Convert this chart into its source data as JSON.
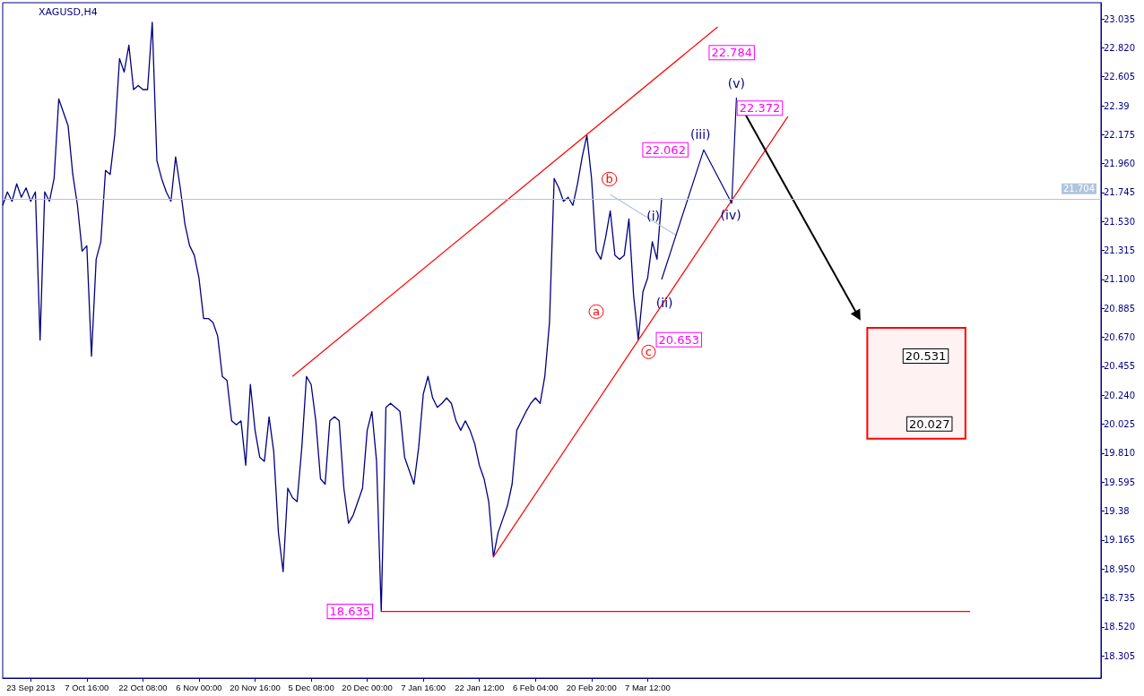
{
  "chart_data": {
    "type": "line",
    "title": "XAGUSD,H4",
    "categories": [
      null,
      null,
      null,
      null,
      null,
      null,
      "23 Sep 2013",
      null,
      null,
      null,
      null,
      null,
      null,
      null,
      null,
      null,
      null,
      null,
      "7 Oct 16:00",
      null,
      null,
      null,
      null,
      null,
      null,
      null,
      null,
      null,
      null,
      null,
      "22 Oct 08:00",
      null,
      null,
      null,
      null,
      null,
      null,
      null,
      null,
      null,
      null,
      null,
      "6 Nov 00:00",
      null,
      null,
      null,
      null,
      null,
      null,
      null,
      null,
      null,
      null,
      null,
      "20 Nov 16:00",
      null,
      null,
      null,
      null,
      null,
      null,
      null,
      null,
      null,
      null,
      null,
      "5 Dec 08:00",
      null,
      null,
      null,
      null,
      null,
      null,
      null,
      null,
      null,
      null,
      null,
      "20 Dec 00:00",
      null,
      null,
      null,
      null,
      null,
      null,
      null,
      null,
      null,
      null,
      null,
      "7 Jan 16:00",
      null,
      null,
      null,
      null,
      null,
      null,
      null,
      null,
      null,
      null,
      null,
      "22 Jan 12:00",
      null,
      null,
      null,
      null,
      null,
      null,
      null,
      null,
      null,
      null,
      null,
      "6 Feb 04:00",
      null,
      null,
      null,
      null,
      null,
      null,
      null,
      null,
      null,
      null,
      null,
      "20 Feb 20:00",
      null,
      null,
      null,
      null,
      null,
      null,
      null,
      null,
      null,
      null,
      null,
      "7 Mar 12:00",
      null,
      null,
      null,
      null,
      null,
      null,
      null,
      null,
      null,
      null,
      null,
      null,
      null,
      null,
      null,
      null,
      null,
      null,
      null,
      null,
      null,
      null,
      null,
      null,
      null,
      null,
      null,
      null,
      null,
      null,
      null,
      null,
      null,
      null,
      null,
      null,
      null,
      null,
      null,
      null,
      null,
      null,
      null,
      null,
      null,
      null,
      null,
      null,
      null,
      null,
      null,
      null,
      null,
      null,
      null,
      null,
      null,
      null,
      null,
      null,
      null,
      null,
      null,
      null,
      null,
      null,
      null,
      null,
      null,
      null,
      null,
      null,
      null,
      null,
      null,
      null,
      null,
      null,
      null,
      null,
      null,
      null,
      null,
      null,
      null,
      null,
      null,
      null,
      null,
      null,
      null,
      null,
      null,
      null,
      null,
      null,
      null
    ],
    "series": [
      {
        "color": "#000080",
        "values": [
          21.65,
          21.75,
          21.68,
          21.81,
          21.71,
          21.78,
          21.68,
          21.75,
          20.65,
          21.75,
          21.68,
          21.85,
          22.44,
          22.34,
          22.24,
          21.88,
          21.65,
          21.31,
          21.35,
          20.53,
          21.25,
          21.38,
          21.91,
          21.88,
          22.18,
          22.74,
          22.64,
          22.84,
          22.51,
          22.54,
          22.51,
          22.51,
          23.01,
          21.98,
          21.85,
          21.75,
          21.68,
          22.01,
          21.78,
          21.51,
          21.35,
          21.28,
          21.11,
          20.81,
          20.81,
          20.78,
          20.68,
          20.38,
          20.35,
          20.05,
          20.02,
          20.05,
          19.72,
          20.32,
          19.98,
          19.78,
          19.75,
          20.08,
          19.82,
          19.22,
          18.93,
          19.55,
          19.48,
          19.45,
          19.85,
          20.38,
          20.32,
          20.05,
          19.62,
          19.58,
          20.05,
          20.08,
          20.05,
          19.55,
          19.29,
          19.35,
          19.45,
          19.55,
          19.98,
          20.12,
          19.75,
          18.635,
          20.15,
          20.18,
          20.15,
          20.12,
          19.78,
          19.68,
          19.58,
          19.85,
          20.25,
          20.38,
          20.22,
          20.15,
          20.18,
          20.22,
          20.18,
          20.05,
          19.98,
          20.05,
          19.98,
          19.88,
          19.72,
          19.62,
          19.45,
          19.04,
          19.22,
          19.32,
          19.42,
          19.58,
          19.98,
          20.05,
          20.12,
          20.18,
          20.22,
          20.18,
          20.38,
          20.78,
          21.85,
          21.78,
          21.68,
          21.71,
          21.65,
          21.81,
          22.01,
          22.17,
          21.85,
          21.31,
          21.25,
          21.41,
          21.61,
          21.28,
          21.25,
          21.28,
          21.55,
          20.98,
          20.653,
          21.01,
          21.11,
          21.38,
          21.25,
          21.704,
          null,
          null,
          null,
          null,
          null,
          null,
          null,
          null,
          null,
          null,
          null,
          null,
          null,
          null,
          null,
          null,
          null,
          null,
          null,
          null,
          null,
          null,
          null,
          null,
          null,
          null,
          null,
          null,
          null,
          null,
          null,
          null,
          null,
          null,
          null,
          null,
          null,
          null,
          null,
          null,
          null,
          null,
          null,
          null,
          null,
          null,
          null,
          null,
          null,
          null,
          null,
          null,
          null,
          null,
          null,
          null,
          null,
          null,
          null,
          null,
          null,
          null,
          null,
          null,
          null,
          null,
          null,
          null,
          null,
          null,
          null,
          null,
          null,
          null,
          null,
          null,
          null,
          null,
          null,
          null,
          null,
          null,
          null,
          null,
          null,
          null,
          null,
          null,
          null,
          null,
          null,
          null,
          null,
          null
        ]
      },
      {
        "color": "#ff0000",
        "values": [
          null,
          null,
          null,
          null,
          null,
          null,
          null,
          null,
          null,
          null,
          null,
          null,
          null,
          null,
          null,
          null,
          null,
          null,
          null,
          null,
          null,
          null,
          null,
          null,
          null,
          null,
          null,
          null,
          null,
          null,
          null,
          null,
          null,
          null,
          null,
          null,
          null,
          null,
          null,
          null,
          null,
          null,
          null,
          null,
          null,
          null,
          null,
          null,
          null,
          null,
          null,
          null,
          null,
          null,
          null,
          null,
          null,
          null,
          null,
          null,
          null,
          null,
          20.38,
          null,
          null,
          null,
          null,
          null,
          null,
          null,
          null,
          null,
          null,
          null,
          null,
          null,
          null,
          null,
          null,
          null,
          null,
          null,
          null,
          null,
          null,
          null,
          null,
          null,
          null,
          null,
          null,
          null,
          null,
          null,
          null,
          null,
          null,
          null,
          null,
          null,
          null,
          null,
          null,
          null,
          null,
          null,
          null,
          null,
          null,
          null,
          null,
          null,
          null,
          null,
          null,
          null,
          null,
          null,
          null,
          null,
          null,
          null,
          null,
          null,
          null,
          null,
          null,
          null,
          null,
          null,
          null,
          null,
          null,
          null,
          null,
          null,
          null,
          null,
          null,
          null,
          null,
          null,
          null,
          null,
          null,
          null,
          null,
          null,
          null,
          null,
          null,
          null,
          null,
          22.975,
          null,
          null,
          null,
          null,
          null,
          null,
          null,
          null,
          null,
          null,
          null,
          null,
          null,
          null,
          null,
          null,
          null,
          null,
          null,
          null,
          null,
          null,
          null,
          null,
          null,
          null,
          null,
          null,
          null,
          null,
          null,
          null,
          null,
          null,
          null,
          null,
          null,
          null,
          null,
          null,
          null,
          null,
          null,
          null,
          null,
          null,
          null,
          null,
          null,
          null,
          null,
          null,
          null,
          null,
          null,
          null,
          null,
          null,
          null,
          null,
          null,
          null,
          null,
          null,
          null,
          null,
          null,
          null,
          null,
          null,
          null,
          null,
          null,
          null,
          null,
          null,
          null,
          null,
          null,
          null,
          null,
          null
        ]
      },
      {
        "color": "#ff0000",
        "values": [
          null,
          null,
          null,
          null,
          null,
          null,
          null,
          null,
          null,
          null,
          null,
          null,
          null,
          null,
          null,
          null,
          null,
          null,
          null,
          null,
          null,
          null,
          null,
          null,
          null,
          null,
          null,
          null,
          null,
          null,
          null,
          null,
          null,
          null,
          null,
          null,
          null,
          null,
          null,
          null,
          null,
          null,
          null,
          null,
          null,
          null,
          null,
          null,
          null,
          null,
          null,
          null,
          null,
          null,
          null,
          null,
          null,
          null,
          null,
          null,
          null,
          null,
          null,
          null,
          null,
          null,
          null,
          null,
          null,
          null,
          null,
          null,
          null,
          null,
          null,
          null,
          null,
          null,
          null,
          null,
          null,
          null,
          null,
          null,
          null,
          null,
          null,
          null,
          null,
          null,
          null,
          null,
          null,
          null,
          null,
          null,
          null,
          null,
          null,
          null,
          null,
          null,
          null,
          null,
          null,
          19.04,
          null,
          null,
          null,
          null,
          null,
          null,
          null,
          null,
          null,
          null,
          null,
          null,
          null,
          null,
          null,
          null,
          null,
          null,
          null,
          null,
          null,
          null,
          null,
          null,
          null,
          null,
          null,
          null,
          null,
          null,
          null,
          null,
          null,
          null,
          null,
          null,
          null,
          null,
          null,
          null,
          null,
          null,
          null,
          null,
          null,
          null,
          null,
          null,
          null,
          null,
          null,
          null,
          null,
          null,
          null,
          null,
          null,
          null,
          null,
          null,
          null,
          null,
          22.31,
          null,
          null,
          null,
          null,
          null,
          null,
          null,
          null,
          null,
          null,
          null,
          null,
          null,
          null,
          null,
          null,
          null,
          null,
          null,
          null,
          null,
          null,
          null,
          null,
          null,
          null,
          null,
          null,
          null,
          null,
          null,
          null,
          null,
          null,
          null,
          null,
          null,
          null,
          null,
          null,
          null,
          null,
          null,
          null,
          null,
          null,
          null,
          null,
          null,
          null,
          null,
          null,
          null,
          null,
          null,
          null,
          null,
          null,
          null,
          null,
          null,
          null,
          null,
          null,
          null,
          null,
          null
        ]
      },
      {
        "color": "#ff0000",
        "values": [
          null,
          null,
          null,
          null,
          null,
          null,
          null,
          null,
          null,
          null,
          null,
          null,
          null,
          null,
          null,
          null,
          null,
          null,
          null,
          null,
          null,
          null,
          null,
          null,
          null,
          null,
          null,
          null,
          null,
          null,
          null,
          null,
          null,
          null,
          null,
          null,
          null,
          null,
          null,
          null,
          null,
          null,
          null,
          null,
          null,
          null,
          null,
          null,
          null,
          null,
          null,
          null,
          null,
          null,
          null,
          null,
          null,
          null,
          null,
          null,
          null,
          null,
          null,
          null,
          null,
          null,
          null,
          null,
          null,
          null,
          null,
          null,
          null,
          null,
          null,
          null,
          null,
          null,
          null,
          null,
          null,
          18.635,
          null,
          null,
          null,
          null,
          null,
          null,
          null,
          null,
          null,
          null,
          null,
          null,
          null,
          null,
          null,
          null,
          null,
          null,
          null,
          null,
          null,
          null,
          null,
          null,
          null,
          null,
          null,
          null,
          null,
          null,
          null,
          null,
          null,
          null,
          null,
          null,
          null,
          null,
          null,
          null,
          null,
          null,
          null,
          null,
          null,
          null,
          null,
          null,
          null,
          null,
          null,
          null,
          null,
          null,
          null,
          null,
          null,
          null,
          null,
          null,
          null,
          null,
          null,
          null,
          null,
          null,
          null,
          null,
          null,
          null,
          null,
          null,
          null,
          null,
          null,
          null,
          null,
          null,
          null,
          null,
          null,
          null,
          null,
          null,
          null,
          null,
          null,
          null,
          null,
          null,
          null,
          null,
          null,
          null,
          null,
          null,
          null,
          null,
          null,
          null,
          null,
          null,
          null,
          null,
          null,
          null,
          null,
          null,
          null,
          null,
          null,
          null,
          null,
          null,
          null,
          null,
          null,
          null,
          null,
          null,
          null,
          null,
          null,
          null,
          null,
          18.635,
          null,
          null,
          null,
          null,
          null,
          null,
          null,
          null,
          null,
          null,
          null,
          null,
          null,
          null,
          null,
          null,
          null,
          null,
          null,
          null,
          null,
          null,
          null,
          null,
          null,
          null,
          null,
          null
        ]
      },
      {
        "color": "#b0c4de",
        "values": [
          null,
          null,
          null,
          null,
          null,
          null,
          null,
          null,
          null,
          null,
          null,
          null,
          null,
          null,
          null,
          null,
          null,
          null,
          null,
          null,
          null,
          null,
          null,
          null,
          null,
          null,
          null,
          null,
          null,
          null,
          null,
          null,
          null,
          null,
          null,
          null,
          null,
          null,
          null,
          null,
          null,
          null,
          null,
          null,
          null,
          null,
          null,
          null,
          null,
          null,
          null,
          null,
          null,
          null,
          null,
          null,
          null,
          null,
          null,
          null,
          null,
          null,
          null,
          null,
          null,
          null,
          null,
          null,
          null,
          null,
          null,
          null,
          null,
          null,
          null,
          null,
          null,
          null,
          null,
          null,
          null,
          null,
          null,
          null,
          null,
          null,
          null,
          null,
          null,
          null,
          null,
          null,
          null,
          null,
          null,
          null,
          null,
          null,
          null,
          null,
          null,
          null,
          null,
          null,
          null,
          null,
          null,
          null,
          null,
          null,
          null,
          null,
          null,
          null,
          null,
          null,
          null,
          null,
          null,
          null,
          null,
          null,
          null,
          null,
          null,
          null,
          null,
          null,
          null,
          null,
          21.73,
          null,
          null,
          null,
          null,
          null,
          null,
          null,
          null,
          null,
          null,
          null,
          null,
          null,
          21.43,
          null,
          null,
          null,
          null,
          null,
          null,
          null,
          null,
          null,
          null,
          null,
          null,
          null,
          null,
          null,
          null,
          null,
          null,
          null,
          null,
          null,
          null,
          null,
          null,
          null,
          null,
          null,
          null,
          null,
          null,
          null,
          null,
          null,
          null,
          null,
          null,
          null,
          null,
          null,
          null,
          null,
          null,
          null,
          null,
          null,
          null,
          null,
          null,
          null,
          null,
          null,
          null,
          null,
          null,
          null,
          null,
          null,
          null,
          null,
          null,
          null,
          null,
          null,
          null,
          null,
          null,
          null,
          null,
          null,
          null,
          null,
          null,
          null,
          null,
          null,
          null,
          null,
          null,
          null,
          null,
          null,
          null,
          null,
          null,
          null,
          null,
          null,
          null,
          null,
          null,
          null
        ]
      },
      {
        "color": "#000080",
        "values": [
          null,
          null,
          null,
          null,
          null,
          null,
          null,
          null,
          null,
          null,
          null,
          null,
          null,
          null,
          null,
          null,
          null,
          null,
          null,
          null,
          null,
          null,
          null,
          null,
          null,
          null,
          null,
          null,
          null,
          null,
          null,
          null,
          null,
          null,
          null,
          null,
          null,
          null,
          null,
          null,
          null,
          null,
          null,
          null,
          null,
          null,
          null,
          null,
          null,
          null,
          null,
          null,
          null,
          null,
          null,
          null,
          null,
          null,
          null,
          null,
          null,
          null,
          null,
          null,
          null,
          null,
          null,
          null,
          null,
          null,
          null,
          null,
          null,
          null,
          null,
          null,
          null,
          null,
          null,
          null,
          null,
          null,
          null,
          null,
          null,
          null,
          null,
          null,
          null,
          null,
          null,
          null,
          null,
          null,
          null,
          null,
          null,
          null,
          null,
          null,
          null,
          null,
          null,
          null,
          null,
          null,
          null,
          null,
          null,
          null,
          null,
          null,
          null,
          null,
          null,
          null,
          null,
          null,
          null,
          null,
          null,
          null,
          null,
          null,
          null,
          null,
          null,
          null,
          null,
          null,
          null,
          null,
          null,
          null,
          null,
          null,
          null,
          null,
          null,
          null,
          null,
          21.1,
          null,
          null,
          null,
          null,
          null,
          null,
          null,
          null,
          22.062,
          null,
          null,
          null,
          null,
          null,
          21.665,
          22.45,
          null,
          null,
          null,
          null,
          null,
          null,
          null,
          null,
          null,
          null,
          null,
          null,
          null,
          null,
          null,
          null,
          null,
          null,
          null,
          null,
          null,
          null,
          null,
          null,
          null,
          null,
          null,
          null,
          null,
          null,
          null,
          null,
          null,
          null,
          null,
          null,
          null,
          null,
          null,
          null,
          null,
          null,
          null,
          null,
          null,
          null,
          null,
          null,
          null,
          null,
          null,
          null,
          null,
          null,
          null,
          null,
          null,
          null,
          null,
          null,
          null,
          null,
          null,
          null,
          null,
          null,
          null,
          null,
          null,
          null,
          null,
          null,
          null,
          null,
          null,
          null,
          null,
          null
        ]
      },
      {
        "color": "#000000",
        "marker": "triangle",
        "values": [
          null,
          null,
          null,
          null,
          null,
          null,
          null,
          null,
          null,
          null,
          null,
          null,
          null,
          null,
          null,
          null,
          null,
          null,
          null,
          null,
          null,
          null,
          null,
          null,
          null,
          null,
          null,
          null,
          null,
          null,
          null,
          null,
          null,
          null,
          null,
          null,
          null,
          null,
          null,
          null,
          null,
          null,
          null,
          null,
          null,
          null,
          null,
          null,
          null,
          null,
          null,
          null,
          null,
          null,
          null,
          null,
          null,
          null,
          null,
          null,
          null,
          null,
          null,
          null,
          null,
          null,
          null,
          null,
          null,
          null,
          null,
          null,
          null,
          null,
          null,
          null,
          null,
          null,
          null,
          null,
          null,
          null,
          null,
          null,
          null,
          null,
          null,
          null,
          null,
          null,
          null,
          null,
          null,
          null,
          null,
          null,
          null,
          null,
          null,
          null,
          null,
          null,
          null,
          null,
          null,
          null,
          null,
          null,
          null,
          null,
          null,
          null,
          null,
          null,
          null,
          null,
          null,
          null,
          null,
          null,
          null,
          null,
          null,
          null,
          null,
          null,
          null,
          null,
          null,
          null,
          null,
          null,
          null,
          null,
          null,
          null,
          null,
          null,
          null,
          null,
          null,
          null,
          null,
          null,
          null,
          null,
          null,
          null,
          null,
          null,
          null,
          null,
          null,
          null,
          null,
          null,
          null,
          null,
          null,
          22.32,
          null,
          null,
          null,
          null,
          null,
          null,
          null,
          null,
          null,
          null,
          null,
          null,
          null,
          null,
          null,
          null,
          null,
          null,
          null,
          null,
          null,
          null,
          null,
          20.83,
          null,
          null,
          null,
          null,
          null,
          null,
          null,
          null,
          null,
          null,
          null,
          null,
          null,
          null,
          null,
          null,
          null,
          null,
          null,
          null,
          null,
          null,
          null,
          null,
          null,
          null,
          null,
          null,
          null,
          null,
          null,
          null,
          null,
          null,
          null,
          null,
          null,
          null,
          null,
          null,
          null,
          null,
          null,
          null,
          null,
          null,
          null,
          null,
          null,
          null,
          null,
          null
        ]
      }
    ],
    "ylim": [
      18.14,
      23.155
    ],
    "yticks": [
      23.035,
      {
        "value": 22.82,
        "label": "22.820"
      },
      22.605,
      22.39,
      22.175,
      {
        "value": 21.96,
        "label": "21.960"
      },
      21.745,
      {
        "value": 21.53,
        "label": "21.530"
      },
      21.315,
      {
        "value": 21.1,
        "label": "21.100"
      },
      20.885,
      {
        "value": 20.67,
        "label": "20.670"
      },
      20.455,
      {
        "value": 20.24,
        "label": "20.240"
      },
      20.025,
      {
        "value": 19.81,
        "label": "19.810"
      },
      19.595,
      19.38,
      19.165,
      {
        "value": 18.95,
        "label": "18.950"
      },
      18.735,
      {
        "value": 18.52,
        "label": "18.520"
      },
      18.305
    ],
    "ref_lines": [
      {
        "axis": "y",
        "value": 21.704,
        "label": "21.704",
        "color": "#b0c4de"
      }
    ],
    "bands": [
      {
        "axis": "y",
        "from": 19.917,
        "to": 20.741,
        "color": "#ff0000"
      }
    ],
    "annotations": [
      "22.784",
      "22.372",
      "22.062",
      "20.653",
      "18.635",
      "20.531",
      "20.027",
      "(i)",
      "(ii)",
      "(iii)",
      "(iv)",
      "(v)",
      "a",
      "b",
      "c"
    ]
  }
}
